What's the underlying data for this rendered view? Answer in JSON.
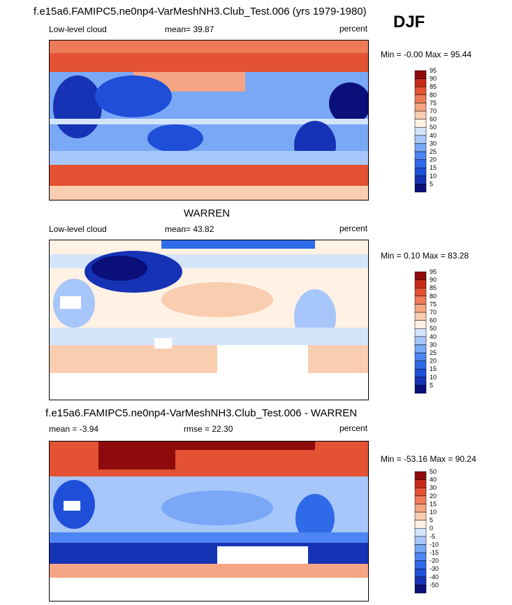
{
  "season": "DJF",
  "panels": [
    {
      "id": "model",
      "title": "f.e15a6.FAMIPC5.ne0np4-VarMeshNH3.Club_Test.006 (yrs 1979-1980)",
      "left_label": "Low-level cloud",
      "center_label": "mean=  39.87",
      "right_label": "percent",
      "minmax": "Min =  -0.00 Max =  95.44",
      "colorbar": {
        "levels": [
          "5",
          "10",
          "15",
          "20",
          "25",
          "30",
          "40",
          "50",
          "60",
          "70",
          "75",
          "80",
          "85",
          "90",
          "95"
        ],
        "colors": [
          "#0b0f7a",
          "#1633b5",
          "#1f4fd8",
          "#2f6ae8",
          "#4d86f2",
          "#79a8f6",
          "#a7c6fa",
          "#d4e4fb",
          "#fff1e4",
          "#f9cdb0",
          "#f5a583",
          "#ee7b58",
          "#e35232",
          "#c62a19",
          "#8e0b0b"
        ]
      }
    },
    {
      "id": "obs",
      "title": "WARREN",
      "left_label": "Low-level cloud",
      "center_label": "mean=  43.82",
      "right_label": "percent",
      "minmax": "Min =   0.10 Max =  83.28",
      "colorbar": {
        "levels": [
          "5",
          "10",
          "15",
          "20",
          "25",
          "30",
          "40",
          "50",
          "60",
          "70",
          "75",
          "80",
          "85",
          "90",
          "95"
        ],
        "colors": [
          "#0b0f7a",
          "#1633b5",
          "#1f4fd8",
          "#2f6ae8",
          "#4d86f2",
          "#79a8f6",
          "#a7c6fa",
          "#d4e4fb",
          "#fff1e4",
          "#f9cdb0",
          "#f5a583",
          "#ee7b58",
          "#e35232",
          "#c62a19",
          "#8e0b0b"
        ]
      }
    },
    {
      "id": "diff",
      "title": "f.e15a6.FAMIPC5.ne0np4-VarMeshNH3.Club_Test.006 - WARREN",
      "left_label": "mean =  -3.94",
      "center_label": "rmse =  22.30",
      "right_label": "percent",
      "minmax": "Min = -53.16 Max =  90.24",
      "colorbar": {
        "levels": [
          "-50",
          "-40",
          "-30",
          "-20",
          "-15",
          "-10",
          "-5",
          "0",
          "5",
          "10",
          "15",
          "20",
          "30",
          "40",
          "50"
        ],
        "colors": [
          "#0b0f7a",
          "#1633b5",
          "#1f4fd8",
          "#2f6ae8",
          "#4d86f2",
          "#79a8f6",
          "#a7c6fa",
          "#d4e4fb",
          "#fff1e4",
          "#f9cdb0",
          "#f5a583",
          "#ee7b58",
          "#e35232",
          "#c62a19",
          "#8e0b0b"
        ]
      }
    }
  ],
  "chart_data": [
    {
      "type": "heatmap",
      "title": "f.e15a6.FAMIPC5.ne0np4-VarMeshNH3.Club_Test.006 (yrs 1979-1980)",
      "variable": "Low-level cloud",
      "units": "percent",
      "season": "DJF",
      "mean": 39.87,
      "min": -0.0,
      "max": 95.44,
      "contour_levels": [
        5,
        10,
        15,
        20,
        25,
        30,
        40,
        50,
        60,
        70,
        75,
        80,
        85,
        90,
        95
      ]
    },
    {
      "type": "heatmap",
      "title": "WARREN",
      "variable": "Low-level cloud",
      "units": "percent",
      "season": "DJF",
      "mean": 43.82,
      "min": 0.1,
      "max": 83.28,
      "contour_levels": [
        5,
        10,
        15,
        20,
        25,
        30,
        40,
        50,
        60,
        70,
        75,
        80,
        85,
        90,
        95
      ]
    },
    {
      "type": "heatmap",
      "title": "f.e15a6.FAMIPC5.ne0np4-VarMeshNH3.Club_Test.006 - WARREN",
      "units": "percent",
      "season": "DJF",
      "mean": -3.94,
      "rmse": 22.3,
      "min": -53.16,
      "max": 90.24,
      "contour_levels": [
        -50,
        -40,
        -30,
        -20,
        -15,
        -10,
        -5,
        0,
        5,
        10,
        15,
        20,
        30,
        40,
        50
      ]
    }
  ]
}
